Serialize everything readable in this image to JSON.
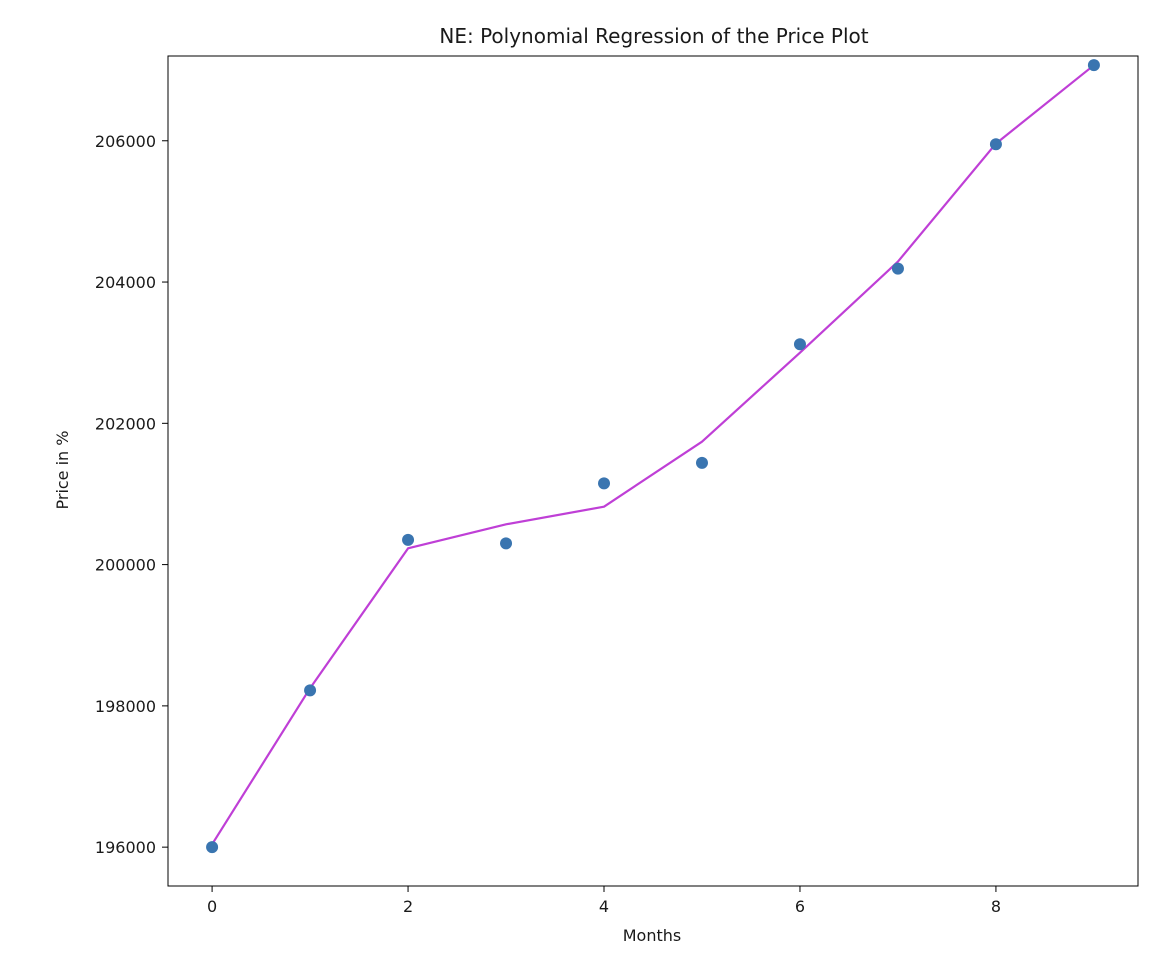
{
  "chart_data": {
    "type": "scatter",
    "title": "NE: Polynomial Regression of the Price Plot",
    "xlabel": "Months",
    "ylabel": "Price in %",
    "xlim": [
      -0.45,
      9.45
    ],
    "ylim": [
      195450,
      207200
    ],
    "grid": false,
    "x_ticks": [
      0,
      2,
      4,
      6,
      8
    ],
    "x_tick_labels": [
      "0",
      "2",
      "4",
      "6",
      "8"
    ],
    "y_ticks": [
      196000,
      198000,
      200000,
      202000,
      204000,
      206000
    ],
    "y_tick_labels": [
      "196000",
      "198000",
      "200000",
      "202000",
      "204000",
      "206000"
    ],
    "series": [
      {
        "kind": "scatter",
        "color": "#3a75b0",
        "x": [
          0,
          1,
          2,
          3,
          4,
          5,
          6,
          7,
          8,
          9
        ],
        "y": [
          196000,
          198220,
          200350,
          200300,
          201150,
          201440,
          203120,
          204190,
          205950,
          207070
        ]
      },
      {
        "kind": "line",
        "color": "#bf3fd6",
        "x": [
          0,
          1,
          2,
          3,
          4,
          5,
          6,
          7,
          8,
          9
        ],
        "y": [
          196040,
          198250,
          200230,
          200570,
          200820,
          201740,
          203000,
          204290,
          205960,
          207070
        ]
      }
    ]
  }
}
